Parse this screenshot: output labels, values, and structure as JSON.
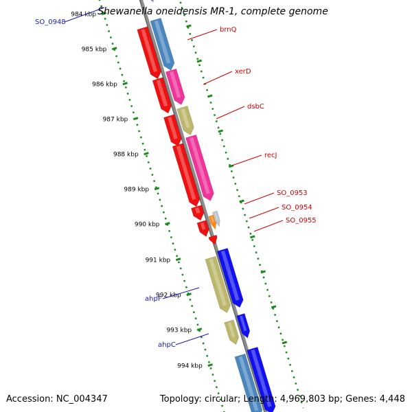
{
  "title": "Shewanella oneidensis MR-1, complete genome",
  "accession_label": "Accession: NC_004347",
  "topology_label": "Topology: circular; Length: 4,969,803 bp; Genes: 4,448",
  "colors": {
    "backbone": "#8c8c8c",
    "tick": "#1a8a1a",
    "label_red": "#cc0000",
    "label_blue": "#1a1aaa",
    "gene_red": "#ee1111",
    "gene_steel": "#4a86be",
    "gene_pink": "#ee3399",
    "gene_khaki": "#bdb76b",
    "gene_blue": "#1111ee",
    "gene_orange": "#ff8c1a",
    "gene_grey": "#c0c4cc"
  },
  "kbp_ticks": [
    "984 kbp",
    "985 kbp",
    "986 kbp",
    "987 kbp",
    "988 kbp",
    "989 kbp",
    "990 kbp",
    "991 kbp",
    "992 kbp",
    "993 kbp",
    "994 kbp"
  ],
  "gene_labels": [
    {
      "text": "SO_0948",
      "color": "blue"
    },
    {
      "text": "brnQ",
      "color": "red"
    },
    {
      "text": "xerD",
      "color": "red"
    },
    {
      "text": "dsbC",
      "color": "red"
    },
    {
      "text": "recJ",
      "color": "red"
    },
    {
      "text": "SO_0953",
      "color": "red"
    },
    {
      "text": "SO_0954",
      "color": "red"
    },
    {
      "text": "SO_0955",
      "color": "red"
    },
    {
      "text": "ahpF",
      "color": "blue"
    },
    {
      "text": "ahpC",
      "color": "blue"
    }
  ]
}
